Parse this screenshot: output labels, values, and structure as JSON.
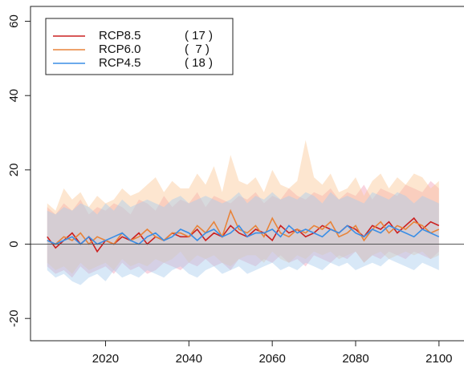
{
  "chart_data": {
    "type": "band-line",
    "x": [
      2006,
      2008,
      2010,
      2012,
      2014,
      2016,
      2018,
      2020,
      2022,
      2024,
      2026,
      2028,
      2030,
      2032,
      2034,
      2036,
      2038,
      2040,
      2042,
      2044,
      2046,
      2048,
      2050,
      2052,
      2054,
      2056,
      2058,
      2060,
      2062,
      2064,
      2066,
      2068,
      2070,
      2072,
      2074,
      2076,
      2078,
      2080,
      2082,
      2084,
      2086,
      2088,
      2090,
      2092,
      2094,
      2096,
      2098,
      2100
    ],
    "xlim": [
      2002,
      2106
    ],
    "xticks": [
      2020,
      2040,
      2060,
      2080,
      2100
    ],
    "ylim": [
      -26,
      64
    ],
    "yticks": [
      -20,
      0,
      20,
      40,
      60
    ],
    "hline": 0,
    "legend": "upper-left",
    "series": [
      {
        "name": "RCP8.5",
        "count": "( 17 )",
        "color": "#cc2020",
        "band_color": "#f2a0b8",
        "values": [
          2,
          -1,
          1,
          3,
          0,
          2,
          -2,
          1,
          0,
          2,
          1,
          3,
          0,
          2,
          1,
          3,
          2,
          2,
          4,
          1,
          3,
          2,
          5,
          3,
          2,
          4,
          3,
          1,
          5,
          3,
          4,
          2,
          3,
          5,
          4,
          3,
          5,
          4,
          2,
          5,
          4,
          6,
          3,
          5,
          7,
          4,
          6,
          5
        ],
        "upper": [
          10,
          8,
          11,
          9,
          12,
          8,
          10,
          9,
          11,
          10,
          8,
          12,
          11,
          9,
          13,
          10,
          12,
          11,
          14,
          10,
          13,
          12,
          11,
          13,
          12,
          14,
          11,
          13,
          12,
          15,
          13,
          12,
          14,
          13,
          15,
          12,
          14,
          13,
          16,
          12,
          15,
          14,
          13,
          16,
          15,
          14,
          17,
          15
        ],
        "lower": [
          -6,
          -8,
          -7,
          -9,
          -6,
          -8,
          -7,
          -6,
          -8,
          -5,
          -7,
          -6,
          -8,
          -7,
          -5,
          -6,
          -7,
          -5,
          -6,
          -4,
          -6,
          -5,
          -7,
          -4,
          -5,
          -6,
          -4,
          -5,
          -3,
          -5,
          -4,
          -6,
          -3,
          -4,
          -5,
          -3,
          -4,
          -2,
          -5,
          -3,
          -4,
          -2,
          -3,
          -4,
          -2,
          -3,
          -4,
          -2
        ]
      },
      {
        "name": "RCP6.0",
        "count": "(  7 )",
        "color": "#e8843a",
        "band_color": "#fbc896",
        "values": [
          1,
          0,
          2,
          1,
          3,
          0,
          2,
          1,
          0,
          3,
          1,
          2,
          4,
          2,
          1,
          3,
          3,
          2,
          5,
          3,
          6,
          2,
          9,
          4,
          3,
          5,
          2,
          7,
          3,
          2,
          4,
          3,
          5,
          4,
          6,
          2,
          3,
          5,
          1,
          4,
          6,
          3,
          5,
          4,
          6,
          5,
          3,
          4
        ],
        "upper": [
          11,
          9,
          15,
          12,
          14,
          10,
          13,
          11,
          12,
          15,
          13,
          14,
          16,
          18,
          14,
          17,
          15,
          15,
          19,
          16,
          21,
          14,
          24,
          17,
          16,
          18,
          14,
          20,
          16,
          15,
          17,
          28,
          18,
          16,
          19,
          14,
          15,
          18,
          13,
          17,
          19,
          15,
          18,
          16,
          19,
          18,
          15,
          17
        ],
        "lower": [
          -5,
          -7,
          -6,
          -8,
          -5,
          -7,
          -6,
          -5,
          -7,
          -4,
          -6,
          -5,
          -6,
          -4,
          -5,
          -4,
          -2,
          -5,
          -3,
          -4,
          -3,
          -5,
          -6,
          -4,
          -3,
          -3,
          -5,
          -2,
          -4,
          -5,
          -3,
          -4,
          -2,
          -3,
          -2,
          -4,
          -3,
          -2,
          -5,
          -3,
          -2,
          -4,
          -3,
          -2,
          -3,
          -2,
          -4,
          -3
        ]
      },
      {
        "name": "RCP4.5",
        "count": "( 18 )",
        "color": "#3a8ee6",
        "band_color": "#a8cdee",
        "values": [
          1,
          0,
          1,
          2,
          0,
          2,
          0,
          1,
          2,
          3,
          1,
          0,
          2,
          3,
          1,
          2,
          4,
          3,
          1,
          3,
          4,
          2,
          3,
          5,
          2,
          3,
          3,
          4,
          2,
          5,
          3,
          4,
          3,
          2,
          4,
          3,
          5,
          3,
          2,
          4,
          3,
          5,
          4,
          3,
          2,
          4,
          3,
          2
        ],
        "upper": [
          9,
          8,
          10,
          9,
          11,
          10,
          8,
          11,
          9,
          12,
          10,
          11,
          12,
          11,
          10,
          12,
          13,
          11,
          12,
          13,
          12,
          11,
          12,
          14,
          11,
          13,
          12,
          14,
          12,
          13,
          12,
          14,
          13,
          11,
          14,
          12,
          13,
          12,
          11,
          14,
          13,
          12,
          14,
          13,
          11,
          13,
          12,
          11
        ],
        "lower": [
          -7,
          -9,
          -8,
          -10,
          -11,
          -9,
          -8,
          -10,
          -7,
          -9,
          -8,
          -9,
          -7,
          -8,
          -9,
          -7,
          -6,
          -8,
          -9,
          -7,
          -6,
          -8,
          -7,
          -6,
          -8,
          -7,
          -6,
          -5,
          -7,
          -6,
          -7,
          -5,
          -6,
          -7,
          -5,
          -6,
          -5,
          -7,
          -6,
          -5,
          -6,
          -4,
          -5,
          -6,
          -7,
          -5,
          -6,
          -7
        ]
      }
    ]
  }
}
